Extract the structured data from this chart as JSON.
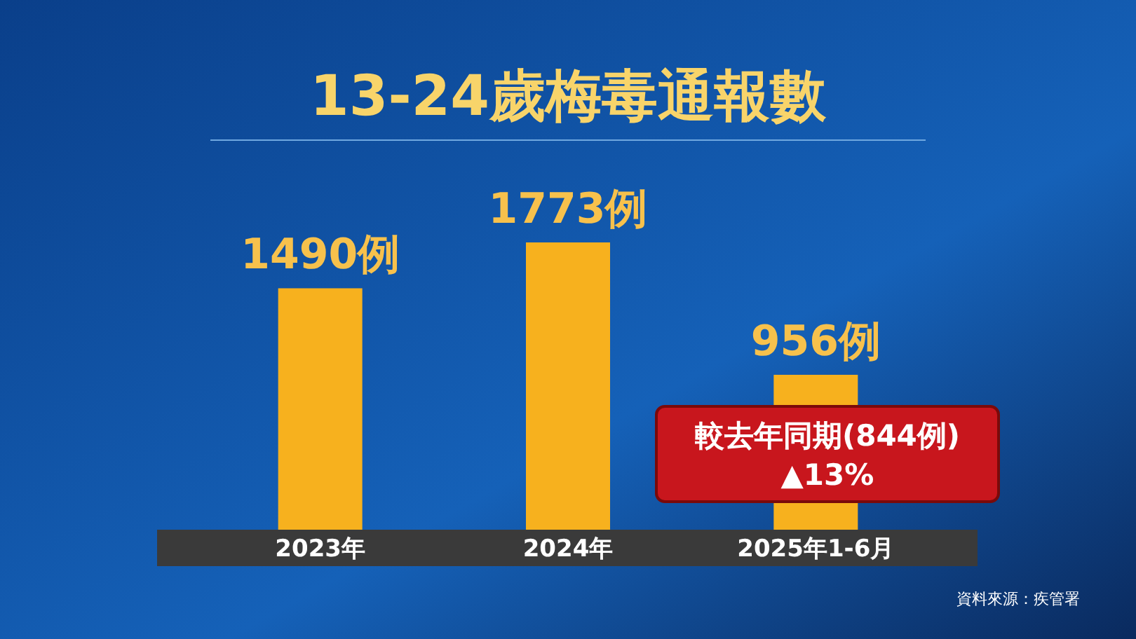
{
  "chart_data": {
    "type": "bar",
    "title": "13-24歲梅毒通報數",
    "categories": [
      "2023年",
      "2024年",
      "2025年1-6月"
    ],
    "values": [
      1490,
      1773,
      956
    ],
    "value_labels": [
      "1490例",
      "1773例",
      "956例"
    ],
    "color": "#f7b11e",
    "annotations": [
      "較去年同期(844例)\n▲13%",
      "資料來源：疾管署"
    ]
  }
}
